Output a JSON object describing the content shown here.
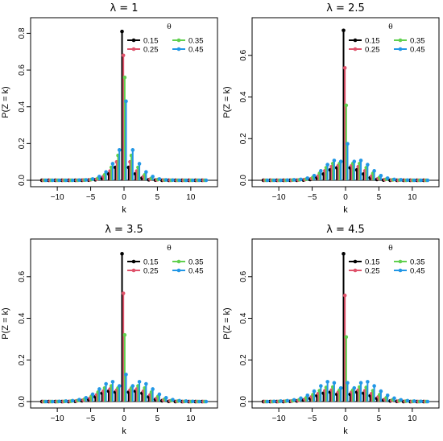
{
  "colors": {
    "0.15": "#000000",
    "0.25": "#DF536B",
    "0.35": "#61D04F",
    "0.45": "#2297E6"
  },
  "chart_data": [
    {
      "type": "stem",
      "title": "λ = 1",
      "xlabel": "k",
      "ylabel": "P(Z = k)",
      "xlim": [
        -14,
        14
      ],
      "ylim": [
        0,
        0.85
      ],
      "xticks": [
        -10,
        -5,
        0,
        5,
        10
      ],
      "yticks": [
        0.0,
        0.2,
        0.4,
        0.6,
        0.8
      ],
      "legend": {
        "title": "θ",
        "position": "top-right"
      },
      "x": [
        -12,
        -11,
        -10,
        -9,
        -8,
        -7,
        -6,
        -5,
        -4,
        -3,
        -2,
        -1,
        0,
        1,
        2,
        3,
        4,
        5,
        6,
        7,
        8,
        9,
        10,
        11,
        12
      ],
      "series": [
        {
          "name": "0.15",
          "values": [
            0,
            0,
            0,
            0,
            0,
            0,
            0,
            0.001,
            0.003,
            0.012,
            0.035,
            0.07,
            0.81,
            0.07,
            0.035,
            0.012,
            0.003,
            0.001,
            0,
            0,
            0,
            0,
            0,
            0,
            0
          ]
        },
        {
          "name": "0.25",
          "values": [
            0,
            0,
            0,
            0,
            0,
            0,
            0.001,
            0.002,
            0.006,
            0.02,
            0.05,
            0.1,
            0.68,
            0.1,
            0.05,
            0.02,
            0.006,
            0.002,
            0.001,
            0,
            0,
            0,
            0,
            0,
            0
          ]
        },
        {
          "name": "0.35",
          "values": [
            0,
            0,
            0,
            0,
            0,
            0,
            0.001,
            0.004,
            0.011,
            0.03,
            0.07,
            0.135,
            0.56,
            0.135,
            0.07,
            0.03,
            0.011,
            0.004,
            0.001,
            0,
            0,
            0,
            0,
            0,
            0
          ]
        },
        {
          "name": "0.45",
          "values": [
            0,
            0,
            0,
            0,
            0,
            0.001,
            0.002,
            0.007,
            0.02,
            0.045,
            0.09,
            0.165,
            0.43,
            0.165,
            0.09,
            0.045,
            0.02,
            0.007,
            0.002,
            0.001,
            0,
            0,
            0,
            0,
            0
          ]
        }
      ]
    },
    {
      "type": "stem",
      "title": "λ = 2.5",
      "xlabel": "k",
      "ylabel": "P(Z = k)",
      "xlim": [
        -14,
        14
      ],
      "ylim": [
        0,
        0.75
      ],
      "xticks": [
        -10,
        -5,
        0,
        5,
        10
      ],
      "yticks": [
        0.0,
        0.2,
        0.4,
        0.6
      ],
      "legend": {
        "title": "θ",
        "position": "top-right"
      },
      "x": [
        -12,
        -11,
        -10,
        -9,
        -8,
        -7,
        -6,
        -5,
        -4,
        -3,
        -2,
        -1,
        0,
        1,
        2,
        3,
        4,
        5,
        6,
        7,
        8,
        9,
        10,
        11,
        12
      ],
      "series": [
        {
          "name": "0.15",
          "values": [
            0,
            0,
            0,
            0,
            0,
            0,
            0.001,
            0.004,
            0.012,
            0.03,
            0.05,
            0.06,
            0.72,
            0.06,
            0.05,
            0.03,
            0.012,
            0.004,
            0.001,
            0,
            0,
            0,
            0,
            0,
            0
          ]
        },
        {
          "name": "0.25",
          "values": [
            0,
            0,
            0,
            0,
            0,
            0.001,
            0.003,
            0.008,
            0.02,
            0.045,
            0.065,
            0.07,
            0.54,
            0.07,
            0.065,
            0.045,
            0.02,
            0.008,
            0.003,
            0.001,
            0,
            0,
            0,
            0,
            0
          ]
        },
        {
          "name": "0.35",
          "values": [
            0,
            0,
            0,
            0,
            0.001,
            0.002,
            0.005,
            0.014,
            0.033,
            0.06,
            0.08,
            0.08,
            0.36,
            0.08,
            0.08,
            0.06,
            0.033,
            0.014,
            0.005,
            0.002,
            0.001,
            0,
            0,
            0,
            0
          ]
        },
        {
          "name": "0.45",
          "values": [
            0,
            0,
            0,
            0.001,
            0.002,
            0.004,
            0.01,
            0.022,
            0.045,
            0.075,
            0.095,
            0.09,
            0.175,
            0.09,
            0.095,
            0.075,
            0.045,
            0.022,
            0.01,
            0.004,
            0.002,
            0.001,
            0,
            0,
            0
          ]
        }
      ]
    },
    {
      "type": "stem",
      "title": "λ = 3.5",
      "xlabel": "k",
      "ylabel": "P(Z = k)",
      "xlim": [
        -14,
        14
      ],
      "ylim": [
        0,
        0.75
      ],
      "xticks": [
        -10,
        -5,
        0,
        5,
        10
      ],
      "yticks": [
        0.0,
        0.2,
        0.4,
        0.6
      ],
      "legend": {
        "title": "θ",
        "position": "top-right"
      },
      "x": [
        -12,
        -11,
        -10,
        -9,
        -8,
        -7,
        -6,
        -5,
        -4,
        -3,
        -2,
        -1,
        0,
        1,
        2,
        3,
        4,
        5,
        6,
        7,
        8,
        9,
        10,
        11,
        12
      ],
      "series": [
        {
          "name": "0.15",
          "values": [
            0,
            0,
            0,
            0,
            0,
            0.001,
            0.004,
            0.01,
            0.022,
            0.04,
            0.05,
            0.045,
            0.71,
            0.045,
            0.05,
            0.04,
            0.022,
            0.01,
            0.004,
            0.001,
            0,
            0,
            0,
            0,
            0
          ]
        },
        {
          "name": "0.25",
          "values": [
            0,
            0,
            0,
            0,
            0.001,
            0.003,
            0.007,
            0.016,
            0.032,
            0.05,
            0.06,
            0.055,
            0.52,
            0.055,
            0.06,
            0.05,
            0.032,
            0.016,
            0.007,
            0.003,
            0.001,
            0,
            0,
            0,
            0
          ]
        },
        {
          "name": "0.35",
          "values": [
            0,
            0,
            0,
            0.001,
            0.002,
            0.005,
            0.012,
            0.025,
            0.045,
            0.065,
            0.075,
            0.065,
            0.32,
            0.065,
            0.075,
            0.065,
            0.045,
            0.025,
            0.012,
            0.005,
            0.002,
            0.001,
            0,
            0,
            0
          ]
        },
        {
          "name": "0.45",
          "values": [
            0,
            0,
            0.001,
            0.002,
            0.004,
            0.009,
            0.018,
            0.035,
            0.06,
            0.085,
            0.095,
            0.075,
            0.13,
            0.075,
            0.095,
            0.085,
            0.06,
            0.035,
            0.018,
            0.009,
            0.004,
            0.002,
            0.001,
            0,
            0
          ]
        }
      ]
    },
    {
      "type": "stem",
      "title": "λ = 4.5",
      "xlabel": "k",
      "ylabel": "P(Z = k)",
      "xlim": [
        -14,
        14
      ],
      "ylim": [
        0,
        0.75
      ],
      "xticks": [
        -10,
        -5,
        0,
        5,
        10
      ],
      "yticks": [
        0.0,
        0.2,
        0.4,
        0.6
      ],
      "legend": {
        "title": "θ",
        "position": "top-right"
      },
      "x": [
        -12,
        -11,
        -10,
        -9,
        -8,
        -7,
        -6,
        -5,
        -4,
        -3,
        -2,
        -1,
        0,
        1,
        2,
        3,
        4,
        5,
        6,
        7,
        8,
        9,
        10,
        11,
        12
      ],
      "series": [
        {
          "name": "0.15",
          "values": [
            0,
            0,
            0,
            0,
            0.001,
            0.003,
            0.007,
            0.015,
            0.028,
            0.04,
            0.045,
            0.035,
            0.71,
            0.035,
            0.045,
            0.04,
            0.028,
            0.015,
            0.007,
            0.003,
            0.001,
            0,
            0,
            0,
            0
          ]
        },
        {
          "name": "0.25",
          "values": [
            0,
            0,
            0,
            0.001,
            0.002,
            0.005,
            0.011,
            0.022,
            0.038,
            0.052,
            0.055,
            0.045,
            0.51,
            0.045,
            0.055,
            0.052,
            0.038,
            0.022,
            0.011,
            0.005,
            0.002,
            0.001,
            0,
            0,
            0
          ]
        },
        {
          "name": "0.35",
          "values": [
            0,
            0,
            0.001,
            0.002,
            0.004,
            0.009,
            0.018,
            0.033,
            0.052,
            0.068,
            0.07,
            0.055,
            0.31,
            0.055,
            0.07,
            0.068,
            0.052,
            0.033,
            0.018,
            0.009,
            0.004,
            0.002,
            0.001,
            0,
            0
          ]
        },
        {
          "name": "0.45",
          "values": [
            0,
            0.001,
            0.002,
            0.004,
            0.008,
            0.016,
            0.03,
            0.05,
            0.075,
            0.095,
            0.09,
            0.065,
            0.09,
            0.065,
            0.09,
            0.095,
            0.075,
            0.05,
            0.03,
            0.016,
            0.008,
            0.004,
            0.002,
            0.001,
            0
          ]
        }
      ]
    }
  ]
}
